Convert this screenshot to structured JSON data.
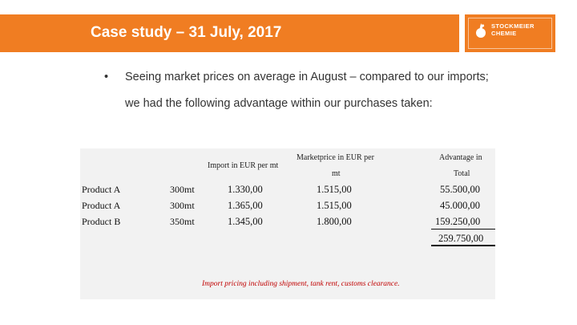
{
  "header": {
    "title": "Case study – 31 July, 2017"
  },
  "logo": {
    "line1": "STOCKMEIER",
    "line2": "CHEMIE",
    "brand_color": "#f07d22"
  },
  "bullet": {
    "symbol": "•",
    "text": "Seeing market prices on average in August – compared to our imports; we had the following advantage within our purchases taken:"
  },
  "table": {
    "headers": {
      "import": "Import in EUR per mt",
      "market_line1": "Marketprice in EUR per",
      "market_line2": "mt",
      "advantage_line1": "Advantage in",
      "advantage_line2": "Total"
    },
    "rows": [
      {
        "product": "Product A",
        "qty": "300mt",
        "import": "1.330,00",
        "market": "1.515,00",
        "advantage": "55.500,00"
      },
      {
        "product": "Product A",
        "qty": "300mt",
        "import": "1.365,00",
        "market": "1.515,00",
        "advantage": "45.000,00"
      },
      {
        "product": "Product B",
        "qty": "350mt",
        "import": "1.345,00",
        "market": "1.800,00",
        "advantage": "159.250,00"
      }
    ],
    "total": "259.750,00",
    "footnote": "Import pricing including shipment, tank rent, customs clearance."
  }
}
